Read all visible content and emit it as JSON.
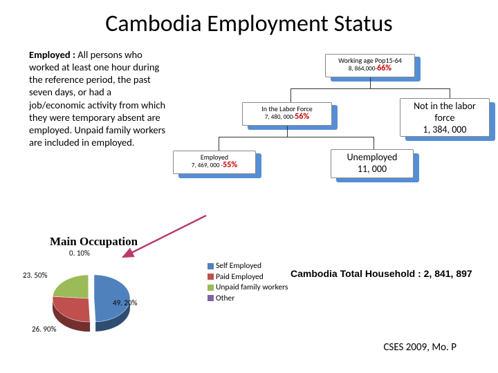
{
  "title": "Cambodia Employment Status",
  "definition": {
    "term": "Employed :",
    "text": " All persons who worked at least one hour during the reference period, the past seven days, or had a job/economic activity from which they were temporary absent are employed. Unpaid family workers are included in employed."
  },
  "org": {
    "shadow_color": "#558ed5",
    "box_bg": "#ffffff",
    "box_border": "#8a8a8a",
    "pct_color": "#c00000",
    "nodes": {
      "root": {
        "l1": "Working age Pop15-64",
        "l2": "8, 864,000-",
        "pct": "66%"
      },
      "labor": {
        "l1": "In the Labor Force",
        "l2": "7, 480, 000-",
        "pct": "56%"
      },
      "notlabor": {
        "l1": "Not in the labor force",
        "l2": "1, 384, 000"
      },
      "employed": {
        "l1": "Employed",
        "l2": "7, 469, 000 -",
        "pct": "55%"
      },
      "unemployed": {
        "l1": "Unemployed",
        "l2": "11, 000"
      }
    }
  },
  "occupation": {
    "title": "Main Occupation",
    "subtitle": "0. 10%",
    "segments": [
      {
        "name": "Self Employed",
        "value": 49.2,
        "color": "#4f81bd",
        "label": "49. 20%"
      },
      {
        "name": "Paid Employed",
        "value": 26.9,
        "color": "#c0504d",
        "label": "26. 90%"
      },
      {
        "name": "Unpaid family workers",
        "value": 23.5,
        "color": "#9bbb59",
        "label": "23. 50%"
      },
      {
        "name": "Other",
        "value": 0.1,
        "color": "#8064a2",
        "label": "0. 10%"
      }
    ]
  },
  "household": "Cambodia Total Household : 2, 841, 897",
  "source": "CSES 2009, Mo. P",
  "arrow_color": "#b83a6f"
}
